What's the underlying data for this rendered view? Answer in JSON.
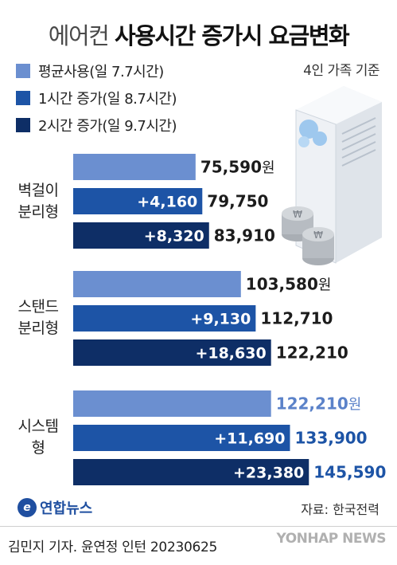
{
  "title": {
    "light": "에어컨",
    "bold": "사용시간 증가시 요금변화"
  },
  "note": "4인 가족 기준",
  "legend": [
    {
      "label": "평균사용(일 7.7시간)",
      "color": "#6b8fd0"
    },
    {
      "label": "1시간 증가(일 8.7시간)",
      "color": "#1d54a6"
    },
    {
      "label": "2시간 증가(일 9.7시간)",
      "color": "#0e2e66"
    }
  ],
  "chart_data": {
    "type": "bar",
    "orientation": "horizontal",
    "title": "에어컨 사용시간 증가시 요금변화",
    "unit": "원",
    "categories": [
      "벽걸이 분리형",
      "스탠드 분리형",
      "시스템형"
    ],
    "category_labels": [
      [
        "벽걸이",
        "분리형"
      ],
      [
        "스탠드",
        "분리형"
      ],
      [
        "시스템",
        "형"
      ]
    ],
    "series": [
      {
        "name": "평균사용(일 7.7시간)",
        "color": "#6b8fd0",
        "values": [
          75590,
          103580,
          122210
        ],
        "value_labels": [
          "75,590",
          "103,580",
          "122,210"
        ],
        "increase_labels": [
          "",
          "",
          ""
        ]
      },
      {
        "name": "1시간 증가(일 8.7시간)",
        "color": "#1d54a6",
        "values": [
          79750,
          112710,
          133900
        ],
        "value_labels": [
          "79,750",
          "112,710",
          "133,900"
        ],
        "increase_labels": [
          "+4,160",
          "+9,130",
          "+11,690"
        ]
      },
      {
        "name": "2시간 증가(일 9.7시간)",
        "color": "#0e2e66",
        "values": [
          83910,
          122210,
          145590
        ],
        "value_labels": [
          "83,910",
          "122,210",
          "145,590"
        ],
        "increase_labels": [
          "+8,320",
          "+18,630",
          "+23,380"
        ]
      }
    ],
    "highlight_color": "#5b82c9",
    "legend_position": "top-left",
    "grid": false
  },
  "footer": {
    "logo_text": "연합뉴스",
    "source": "자료: 한국전력",
    "credit": "김민지 기자. 윤연정 인턴  20230625",
    "watermark": "YONHAP NEWS"
  }
}
